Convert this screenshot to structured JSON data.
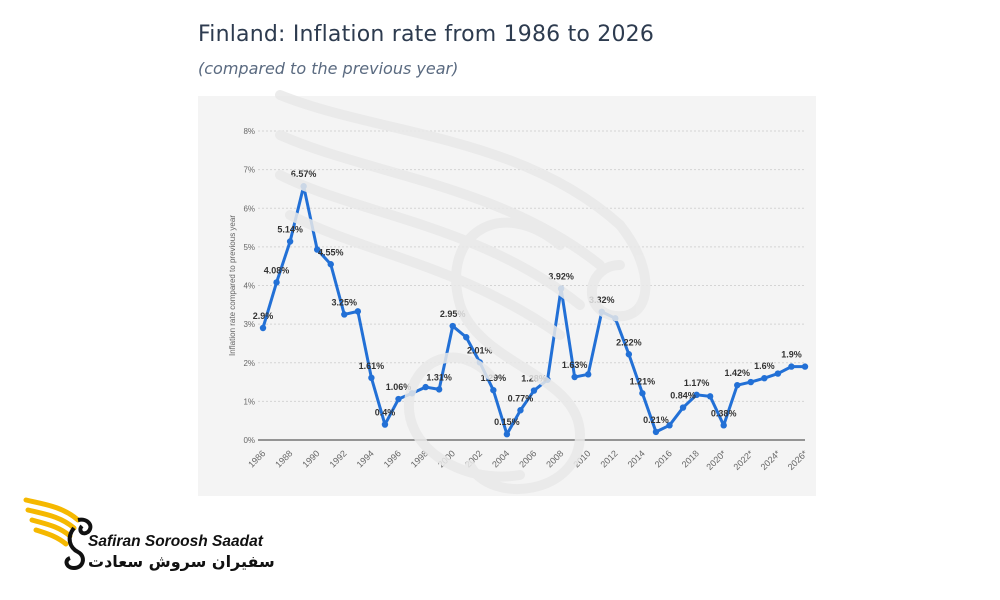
{
  "page": {
    "title": "Finland: Inflation rate from 1986 to 2026",
    "subtitle": "(compared to the previous year)"
  },
  "brand": {
    "name_latin": "Safiran Soroosh Saadat",
    "name_persian": "سفیران سروش سعادت",
    "logo_icon": "bird-wing-icon",
    "accent_color": "#f5b800"
  },
  "chart_data": {
    "type": "line",
    "title": "Finland: Inflation rate from 1986 to 2026",
    "subtitle": "(compared to the previous year)",
    "xlabel": "",
    "ylabel": "Inflation rate compared to previous year",
    "x": [
      "1986",
      "1987",
      "1988",
      "1989",
      "1990",
      "1991",
      "1992",
      "1993",
      "1994",
      "1995",
      "1996",
      "1997",
      "1998",
      "1999",
      "2000",
      "2001",
      "2002",
      "2003",
      "2004",
      "2005",
      "2006",
      "2007",
      "2008",
      "2009",
      "2010",
      "2011",
      "2012",
      "2013",
      "2014",
      "2015",
      "2016",
      "2017",
      "2018",
      "2019",
      "2020*",
      "2021*",
      "2022*",
      "2023*",
      "2024*",
      "2025*",
      "2026*"
    ],
    "x_tick_labels": [
      "1986",
      "1988",
      "1990",
      "1992",
      "1994",
      "1996",
      "1998",
      "2000",
      "2002",
      "2004",
      "2006",
      "2008",
      "2010",
      "2012",
      "2014",
      "2016",
      "2018",
      "2020*",
      "2022*",
      "2024*",
      "2026*"
    ],
    "series": [
      {
        "values": [
          2.9,
          4.08,
          5.14,
          6.57,
          4.93,
          4.55,
          3.25,
          3.33,
          1.61,
          0.4,
          1.06,
          1.21,
          1.37,
          1.31,
          2.95,
          2.66,
          2.01,
          1.29,
          0.15,
          0.77,
          1.28,
          1.56,
          3.92,
          1.63,
          1.7,
          3.32,
          3.15,
          2.22,
          1.21,
          0.21,
          0.38,
          0.84,
          1.17,
          1.13,
          0.38,
          1.42,
          1.5,
          1.6,
          1.72,
          1.9,
          1.9
        ],
        "color": "#2270d6"
      }
    ],
    "data_labels": [
      {
        "x": "1986",
        "text": "2.9%"
      },
      {
        "x": "1987",
        "text": "4.08%"
      },
      {
        "x": "1988",
        "text": "5.14%"
      },
      {
        "x": "1989",
        "text": "6.57%"
      },
      {
        "x": "1991",
        "text": "4.55%"
      },
      {
        "x": "1992",
        "text": "3.25%"
      },
      {
        "x": "1994",
        "text": "1.61%"
      },
      {
        "x": "1995",
        "text": "0.4%"
      },
      {
        "x": "1996",
        "text": "1.06%"
      },
      {
        "x": "1999",
        "text": "1.31%"
      },
      {
        "x": "2000",
        "text": "2.95%"
      },
      {
        "x": "2002",
        "text": "2.01%"
      },
      {
        "x": "2003",
        "text": "1.29%"
      },
      {
        "x": "2004",
        "text": "0.15%"
      },
      {
        "x": "2005",
        "text": "0.77%"
      },
      {
        "x": "2006",
        "text": "1.28%"
      },
      {
        "x": "2008",
        "text": "3.92%"
      },
      {
        "x": "2009",
        "text": "1.63%"
      },
      {
        "x": "2011",
        "text": "3.32%"
      },
      {
        "x": "2013",
        "text": "2.22%"
      },
      {
        "x": "2014",
        "text": "1.21%"
      },
      {
        "x": "2015",
        "text": "0.21%"
      },
      {
        "x": "2017",
        "text": "0.84%"
      },
      {
        "x": "2018",
        "text": "1.17%"
      },
      {
        "x": "2020*",
        "text": "0.38%"
      },
      {
        "x": "2021*",
        "text": "1.42%"
      },
      {
        "x": "2023*",
        "text": "1.6%"
      },
      {
        "x": "2025*",
        "text": "1.9%"
      }
    ],
    "y_ticks": [
      "0%",
      "1%",
      "2%",
      "3%",
      "4%",
      "5%",
      "6%",
      "7%",
      "8%"
    ],
    "ylim": [
      0,
      8
    ],
    "grid": "horizontal dashed",
    "legend": "none"
  }
}
